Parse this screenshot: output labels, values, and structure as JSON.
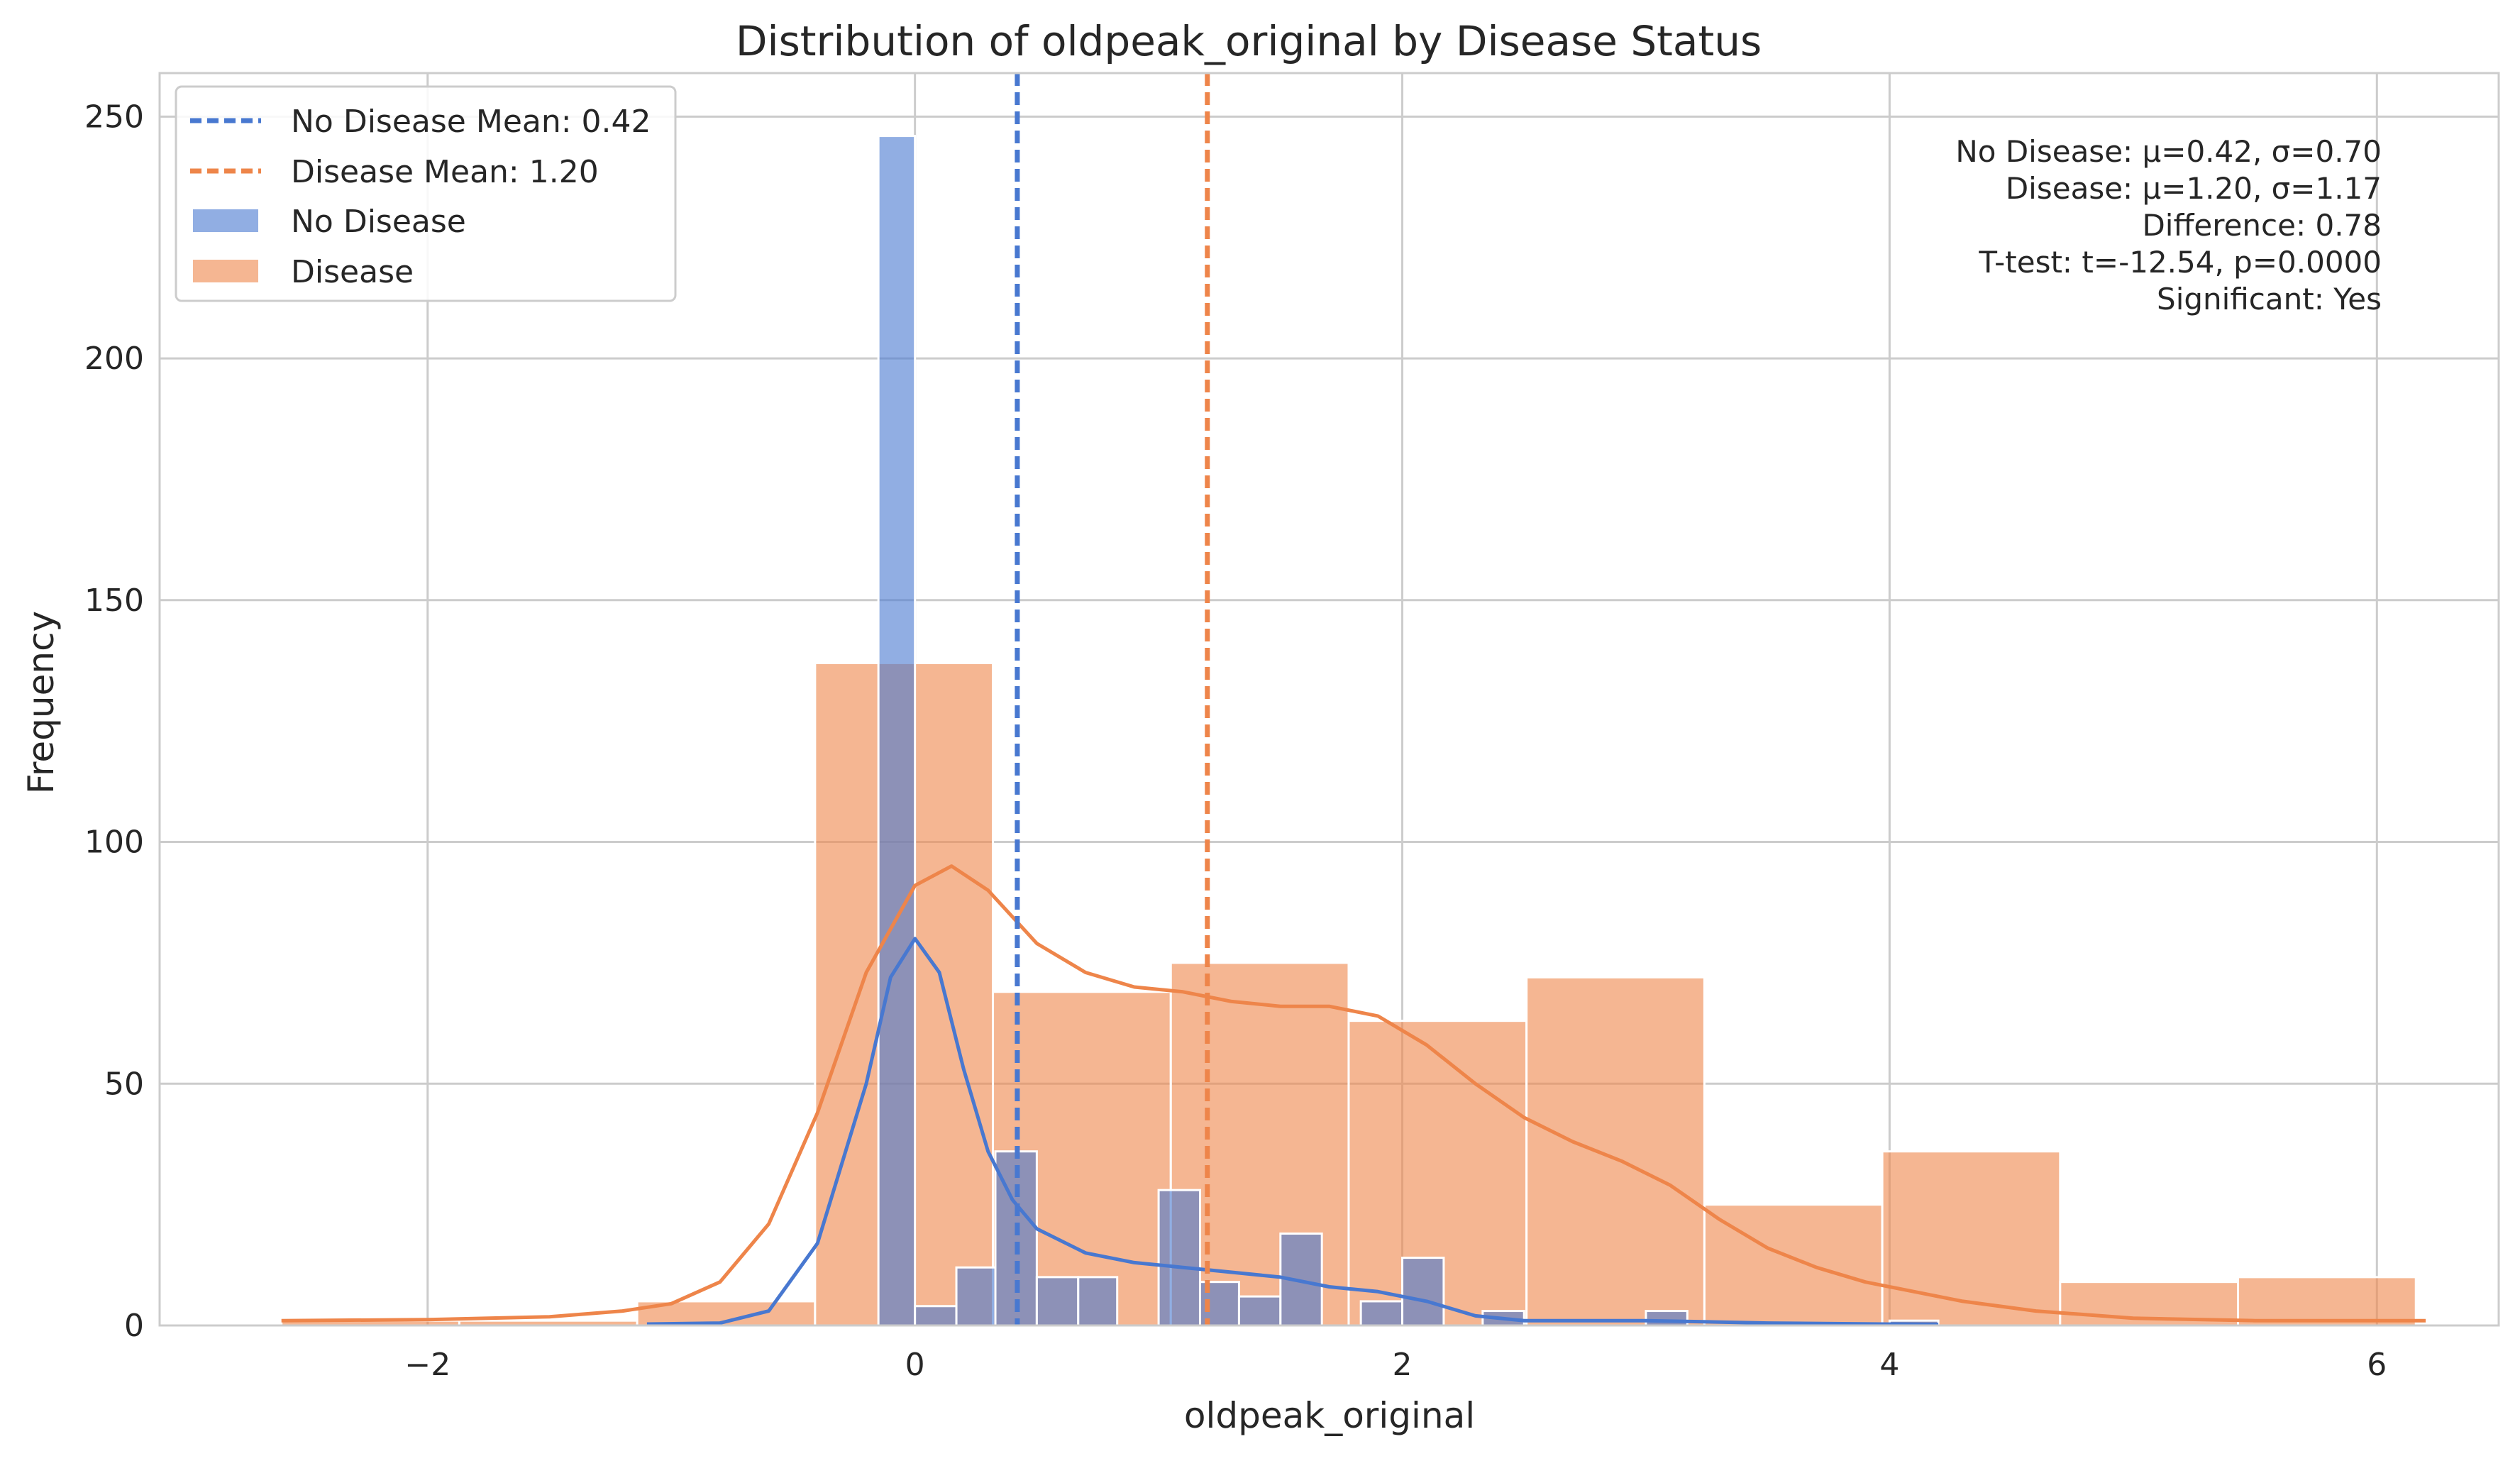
{
  "chart_data": {
    "type": "bar",
    "title": "Distribution of oldpeak_original by Disease Status",
    "xlabel": "oldpeak_original",
    "ylabel": "Frequency",
    "xlim": [
      -3.1,
      6.5
    ],
    "ylim": [
      0,
      259
    ],
    "x_ticks": [
      -2,
      0,
      2,
      4,
      6
    ],
    "x_tick_labels": [
      "−2",
      "0",
      "2",
      "4",
      "6"
    ],
    "y_ticks": [
      0,
      50,
      100,
      150,
      200,
      250
    ],
    "y_tick_labels": [
      "0",
      "50",
      "100",
      "150",
      "200",
      "250"
    ],
    "grid": true,
    "legend_position": "top-left",
    "legend": [
      {
        "label": "No Disease Mean: 0.42",
        "kind": "dashed-line",
        "color": "#4878d0"
      },
      {
        "label": "Disease Mean: 1.20",
        "kind": "dashed-line",
        "color": "#ee854a"
      },
      {
        "label": "No Disease",
        "kind": "patch",
        "color": "#4878d0"
      },
      {
        "label": "Disease",
        "kind": "patch",
        "color": "#ee854a"
      }
    ],
    "series": [
      {
        "name": "No Disease",
        "kind": "histogram",
        "color": "#4878d0",
        "bins": [
          {
            "x0": -0.15,
            "x1": 0.0,
            "count": 246
          },
          {
            "x0": 0.0,
            "x1": 0.17,
            "count": 4
          },
          {
            "x0": 0.17,
            "x1": 0.33,
            "count": 12
          },
          {
            "x0": 0.33,
            "x1": 0.5,
            "count": 36
          },
          {
            "x0": 0.5,
            "x1": 0.67,
            "count": 10
          },
          {
            "x0": 0.67,
            "x1": 0.83,
            "count": 10
          },
          {
            "x0": 0.83,
            "x1": 1.0,
            "count": 0
          },
          {
            "x0": 1.0,
            "x1": 1.17,
            "count": 28
          },
          {
            "x0": 1.17,
            "x1": 1.33,
            "count": 9
          },
          {
            "x0": 1.33,
            "x1": 1.5,
            "count": 6
          },
          {
            "x0": 1.5,
            "x1": 1.67,
            "count": 19
          },
          {
            "x0": 1.67,
            "x1": 1.83,
            "count": 0
          },
          {
            "x0": 1.83,
            "x1": 2.0,
            "count": 5
          },
          {
            "x0": 2.0,
            "x1": 2.17,
            "count": 14
          },
          {
            "x0": 2.17,
            "x1": 2.33,
            "count": 0
          },
          {
            "x0": 2.33,
            "x1": 2.5,
            "count": 3
          },
          {
            "x0": 2.83,
            "x1": 3.0,
            "count": 0
          },
          {
            "x0": 3.0,
            "x1": 3.17,
            "count": 3
          },
          {
            "x0": 4.0,
            "x1": 4.2,
            "count": 1
          }
        ],
        "kde": [
          [
            -1.1,
            0.3
          ],
          [
            -0.8,
            0.5
          ],
          [
            -0.6,
            3
          ],
          [
            -0.4,
            17
          ],
          [
            -0.2,
            50
          ],
          [
            -0.1,
            72
          ],
          [
            0.0,
            80
          ],
          [
            0.1,
            73
          ],
          [
            0.2,
            53
          ],
          [
            0.3,
            36
          ],
          [
            0.4,
            26
          ],
          [
            0.5,
            20
          ],
          [
            0.7,
            15
          ],
          [
            0.9,
            13
          ],
          [
            1.1,
            12
          ],
          [
            1.3,
            11
          ],
          [
            1.5,
            10
          ],
          [
            1.7,
            8
          ],
          [
            1.9,
            7
          ],
          [
            2.1,
            5
          ],
          [
            2.3,
            2
          ],
          [
            2.5,
            1
          ],
          [
            3.0,
            1
          ],
          [
            3.5,
            0.5
          ],
          [
            4.2,
            0.2
          ]
        ]
      },
      {
        "name": "Disease",
        "kind": "histogram",
        "color": "#ee854a",
        "bins": [
          {
            "x0": -2.6,
            "x1": -1.87,
            "count": 1
          },
          {
            "x0": -1.87,
            "x1": -1.14,
            "count": 1
          },
          {
            "x0": -1.14,
            "x1": -0.41,
            "count": 5
          },
          {
            "x0": -0.41,
            "x1": 0.32,
            "count": 137
          },
          {
            "x0": 0.32,
            "x1": 1.05,
            "count": 69
          },
          {
            "x0": 1.05,
            "x1": 1.78,
            "count": 75
          },
          {
            "x0": 1.78,
            "x1": 2.51,
            "count": 63
          },
          {
            "x0": 2.51,
            "x1": 3.24,
            "count": 72
          },
          {
            "x0": 3.24,
            "x1": 3.97,
            "count": 25
          },
          {
            "x0": 3.97,
            "x1": 4.7,
            "count": 36
          },
          {
            "x0": 4.7,
            "x1": 5.43,
            "count": 9
          },
          {
            "x0": 5.43,
            "x1": 6.16,
            "count": 10
          }
        ],
        "kde": [
          [
            -2.6,
            1
          ],
          [
            -2.0,
            1.2
          ],
          [
            -1.5,
            1.8
          ],
          [
            -1.2,
            3
          ],
          [
            -1.0,
            4.5
          ],
          [
            -0.8,
            9
          ],
          [
            -0.6,
            21
          ],
          [
            -0.4,
            44
          ],
          [
            -0.2,
            73
          ],
          [
            0.0,
            91
          ],
          [
            0.15,
            95
          ],
          [
            0.3,
            90
          ],
          [
            0.5,
            79
          ],
          [
            0.7,
            73
          ],
          [
            0.9,
            70
          ],
          [
            1.1,
            69
          ],
          [
            1.3,
            67
          ],
          [
            1.5,
            66
          ],
          [
            1.7,
            66
          ],
          [
            1.9,
            64
          ],
          [
            2.1,
            58
          ],
          [
            2.3,
            50
          ],
          [
            2.5,
            43
          ],
          [
            2.7,
            38
          ],
          [
            2.9,
            34
          ],
          [
            3.1,
            29
          ],
          [
            3.3,
            22
          ],
          [
            3.5,
            16
          ],
          [
            3.7,
            12
          ],
          [
            3.9,
            9
          ],
          [
            4.1,
            7
          ],
          [
            4.3,
            5
          ],
          [
            4.6,
            3
          ],
          [
            5.0,
            1.5
          ],
          [
            5.5,
            1
          ],
          [
            6.2,
            1
          ]
        ]
      }
    ],
    "mean_lines": [
      {
        "label": "No Disease Mean: 0.42",
        "x": 0.42,
        "color": "#4878d0"
      },
      {
        "label": "Disease Mean: 1.20",
        "x": 1.2,
        "color": "#ee854a"
      }
    ],
    "stats_annotation": [
      "No Disease: μ=0.42, σ=0.70",
      "Disease: μ=1.20, σ=1.17",
      "Difference: 0.78",
      "T-test: t=-12.54, p=0.0000",
      "Significant: Yes"
    ]
  }
}
